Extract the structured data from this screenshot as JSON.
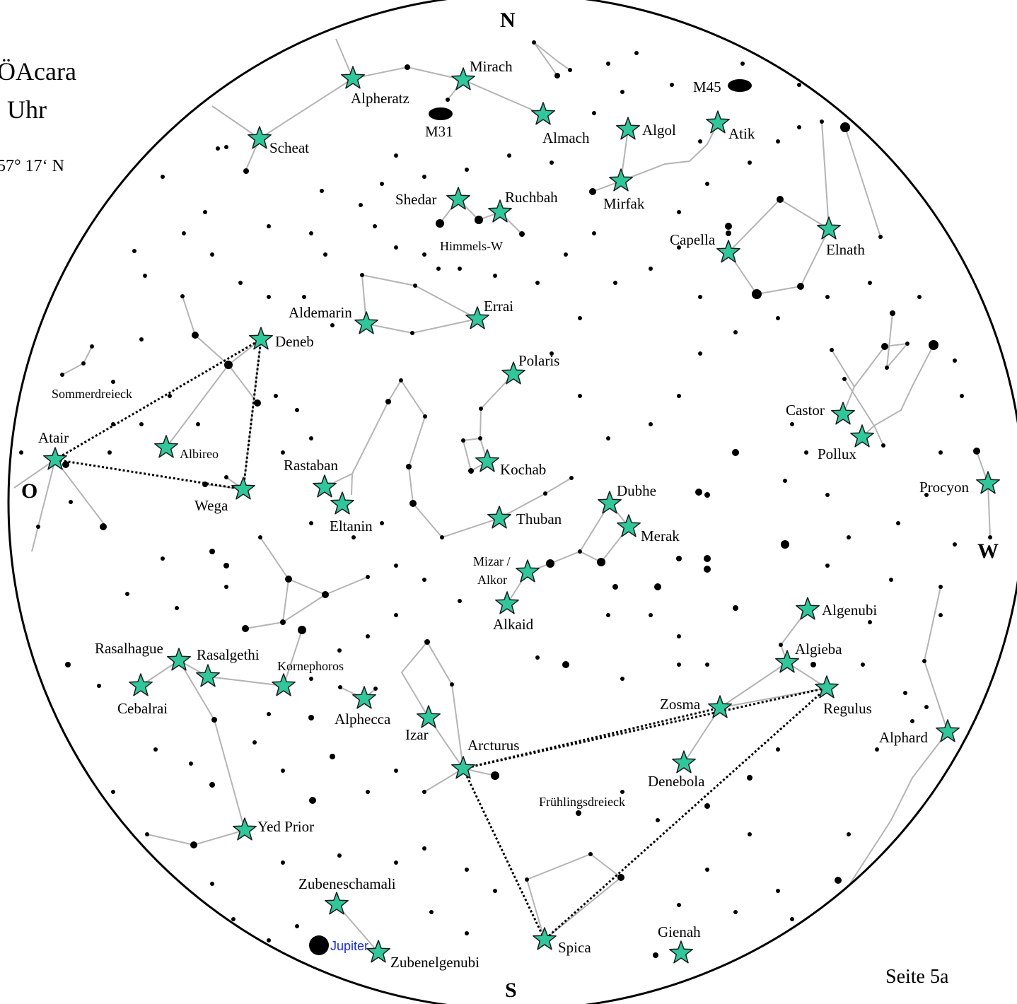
{
  "header": {
    "title": "ÖAcara",
    "time": "Uhr",
    "latitude": "57° 17‘ N"
  },
  "page_number": "Seite 5a",
  "colors": {
    "star_fill": "#2fc79b",
    "star_stroke": "#1a1a1a",
    "line": "#b4b4b4",
    "jupiter_label": "#1a2ecc"
  },
  "directions": {
    "north": "N",
    "south": "S",
    "east": "O",
    "west": "W"
  },
  "stars": [
    "Alpheratz",
    "Mirach",
    "Almach",
    "Scheat",
    "Algol",
    "Atik",
    "Mirfak",
    "Shedar",
    "Ruchbah",
    "Capella",
    "Elnath",
    "Aldemarin",
    "Errai",
    "Deneb",
    "Polaris",
    "Atair",
    "Albireo",
    "Wega",
    "Rastaban",
    "Eltanin",
    "Kochab",
    "Thuban",
    "Dubhe",
    "Merak",
    "Mizar / Alkor",
    "Alkaid",
    "Castor",
    "Pollux",
    "Procyon",
    "Algenubi",
    "Algieba",
    "Regulus",
    "Zosma",
    "Denebola",
    "Alphard",
    "Rasalhague",
    "Rasalgethi",
    "Kornephoros",
    "Cebalrai",
    "Alphecca",
    "Izar",
    "Arcturus",
    "Yed Prior",
    "Zubeneschamali",
    "Zubenelgenubi",
    "Spica",
    "Gienah"
  ],
  "deep_sky": [
    "M31",
    "M45"
  ],
  "planets": [
    "Jupiter"
  ],
  "asterisms": [
    "Sommerdreieck",
    "Frühlingsdreieck",
    "Himmels-W"
  ]
}
